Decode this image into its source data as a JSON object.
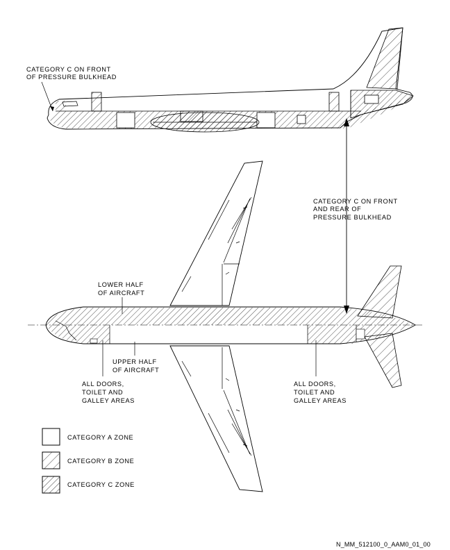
{
  "top_view_labels": {
    "front_bulkhead_line1": "CATEGORY C ON FRONT",
    "front_bulkhead_line2": "OF PRESSURE BULKHEAD"
  },
  "side_labels": {
    "front_rear_line1": "CATEGORY C ON FRONT",
    "front_rear_line2": "AND REAR OF",
    "front_rear_line3": "PRESSURE BULKHEAD"
  },
  "plan_view_labels": {
    "lower_half_line1": "LOWER HALF",
    "lower_half_line2": "OF AIRCRAFT",
    "upper_half_line1": "UPPER HALF",
    "upper_half_line2": "OF AIRCRAFT",
    "doors_left_line1": "ALL DOORS,",
    "doors_left_line2": "TOILET AND",
    "doors_left_line3": "GALLEY AREAS",
    "doors_right_line1": "ALL DOORS,",
    "doors_right_line2": "TOILET AND",
    "doors_right_line3": "GALLEY AREAS"
  },
  "legend": [
    {
      "label": "CATEGORY A ZONE",
      "pattern": "none"
    },
    {
      "label": "CATEGORY B ZONE",
      "pattern": "wide-hatch"
    },
    {
      "label": "CATEGORY C ZONE",
      "pattern": "dense-hatch"
    }
  ],
  "figure_id": "N_MM_512100_0_AAM0_01_00"
}
